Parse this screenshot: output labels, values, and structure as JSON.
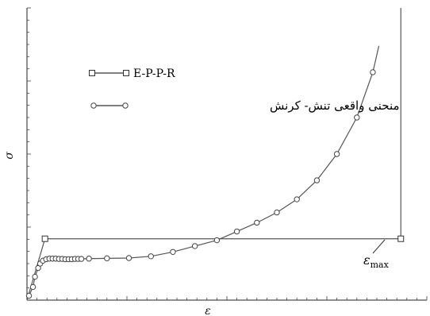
{
  "chart_data": {
    "type": "line",
    "xlabel": "ε",
    "ylabel": "σ",
    "xlim": [
      0,
      100
    ],
    "ylim": [
      0,
      100
    ],
    "grid": false,
    "legend_placement": "top-left",
    "annotations": [
      {
        "text": "ε",
        "sub": "max",
        "target": "vertical line at ε_max"
      }
    ],
    "series": [
      {
        "name": "E-P-P-R",
        "marker": "square",
        "color": "#555555",
        "points": [
          [
            0,
            0
          ],
          [
            4.5,
            21
          ],
          [
            4.5,
            21
          ],
          [
            93.5,
            21
          ],
          [
            93.5,
            100
          ]
        ],
        "marker_indices": [
          2,
          3
        ]
      },
      {
        "name": "منحنی واقعی تنش- کرنش",
        "marker": "circle",
        "color": "#555555",
        "points": [
          [
            0.5,
            1.5
          ],
          [
            1.5,
            4.5
          ],
          [
            2,
            8
          ],
          [
            2.8,
            11
          ],
          [
            3.3,
            12.5
          ],
          [
            4,
            13.5
          ],
          [
            4.8,
            14
          ],
          [
            5.6,
            14.2
          ],
          [
            6.4,
            14.2
          ],
          [
            7.2,
            14.2
          ],
          [
            8,
            14.1
          ],
          [
            8.8,
            14.1
          ],
          [
            9.6,
            14.0
          ],
          [
            10.4,
            14.0
          ],
          [
            11.2,
            14.0
          ],
          [
            12,
            14.1
          ],
          [
            12.8,
            14.1
          ],
          [
            13.6,
            14.1
          ],
          [
            15.5,
            14.2
          ],
          [
            20,
            14.3
          ],
          [
            25.5,
            14.4
          ],
          [
            31,
            15
          ],
          [
            36.5,
            16.5
          ],
          [
            42,
            18.5
          ],
          [
            47.5,
            20.5
          ],
          [
            52.5,
            23.5
          ],
          [
            57.5,
            26.5
          ],
          [
            62.5,
            30
          ],
          [
            67.5,
            34.5
          ],
          [
            72.5,
            41
          ],
          [
            77.5,
            50
          ],
          [
            82.5,
            62.5
          ],
          [
            86.5,
            78
          ]
        ],
        "curve_end": [
          88,
          87
        ]
      }
    ]
  }
}
